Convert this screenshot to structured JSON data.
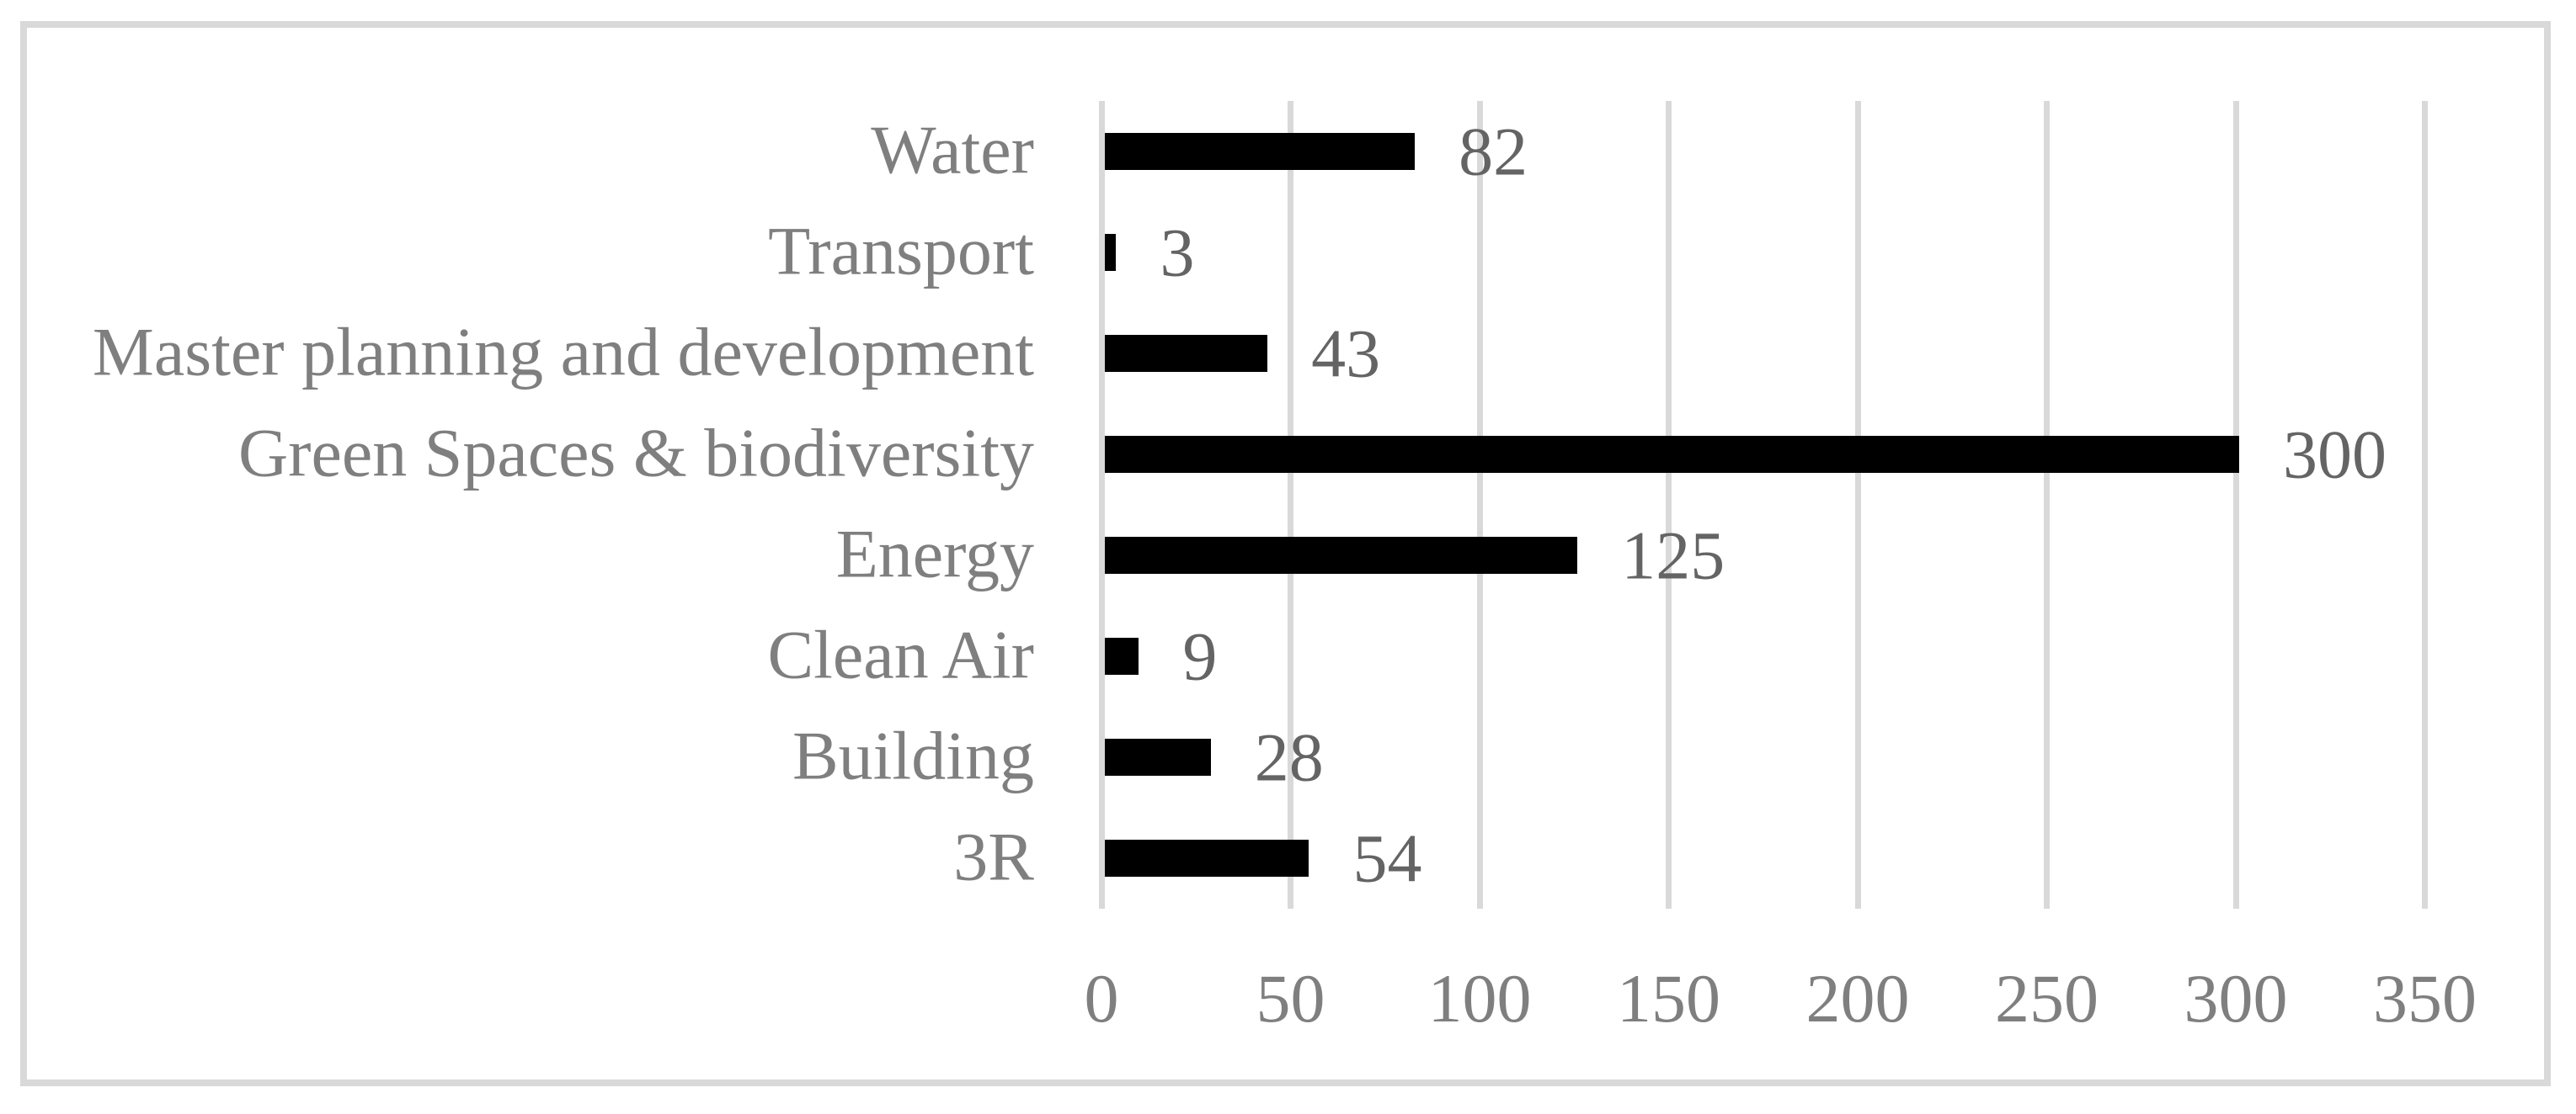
{
  "chart_data": {
    "type": "bar",
    "orientation": "horizontal",
    "title": "",
    "xlabel": "",
    "ylabel": "",
    "categories": [
      "Water",
      "Transport",
      "Master planning and development",
      "Green Spaces & biodiversity",
      "Energy",
      "Clean Air",
      "Building",
      "3R"
    ],
    "values": [
      82,
      3,
      43,
      300,
      125,
      9,
      28,
      54
    ],
    "xlim": [
      0,
      350
    ],
    "x_ticks": [
      "0",
      "50",
      "100",
      "150",
      "200",
      "250",
      "300",
      "350"
    ],
    "grid": "vertical-only",
    "legend": "none",
    "data_labels_shown": true,
    "colors": {
      "bar": "#000000",
      "category_label": "#7f7f7f",
      "value_label": "#646464",
      "tick_label": "#7f7f7f",
      "gridline": "#d9d9d9",
      "frame_border": "#d9d9d9",
      "background": "#ffffff"
    }
  }
}
